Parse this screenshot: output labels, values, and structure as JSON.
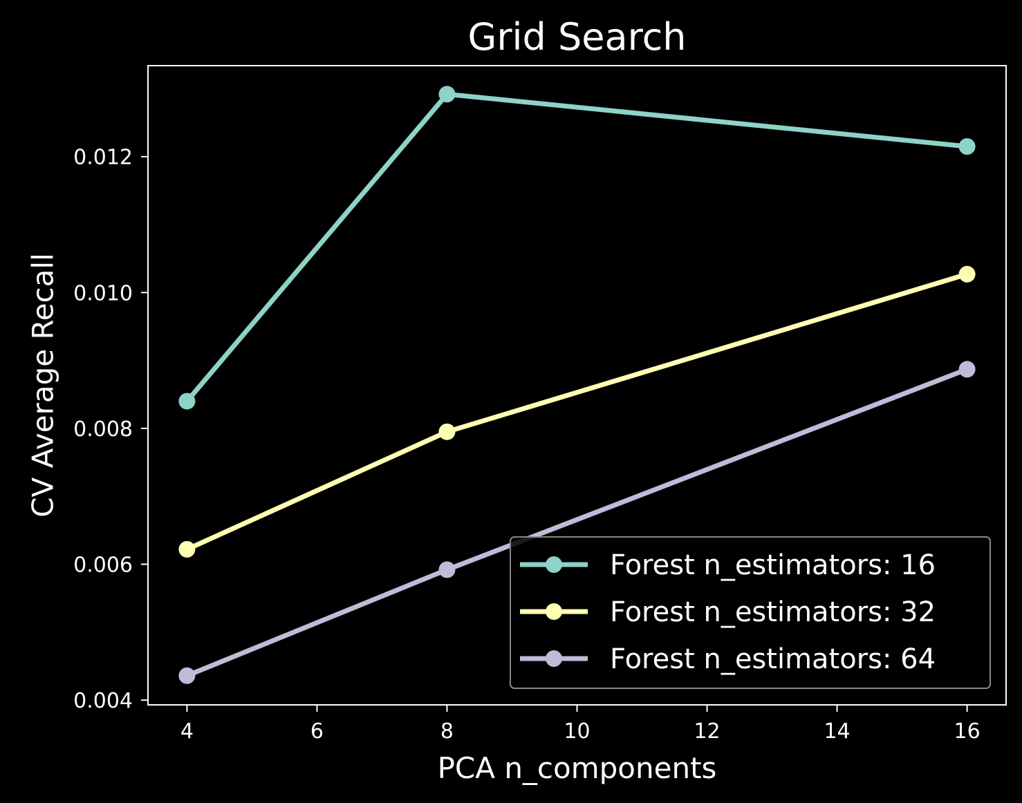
{
  "chart_data": {
    "type": "line",
    "title": "Grid Search",
    "xlabel": "PCA n_components",
    "ylabel": "CV Average Recall",
    "xlim": [
      3.4,
      16.6
    ],
    "ylim": [
      0.00393,
      0.01334
    ],
    "xticks": [
      4,
      6,
      8,
      10,
      12,
      14,
      16
    ],
    "yticks": [
      0.004,
      0.006,
      0.008,
      0.01,
      0.012
    ],
    "ytick_labels": [
      "0.004",
      "0.006",
      "0.008",
      "0.010",
      "0.012"
    ],
    "grid": false,
    "legend_position": "lower-right",
    "background": "#000000",
    "series": [
      {
        "name": "Forest n_estimators: 16",
        "color": "#8dd3c7",
        "x": [
          4,
          8,
          16
        ],
        "y": [
          0.0084,
          0.01292,
          0.01215
        ]
      },
      {
        "name": "Forest n_estimators: 32",
        "color": "#feffb3",
        "x": [
          4,
          8,
          16
        ],
        "y": [
          0.00622,
          0.00795,
          0.01027
        ]
      },
      {
        "name": "Forest n_estimators: 64",
        "color": "#bfbbd9",
        "x": [
          4,
          8,
          16
        ],
        "y": [
          0.00436,
          0.00592,
          0.00887
        ]
      }
    ]
  }
}
